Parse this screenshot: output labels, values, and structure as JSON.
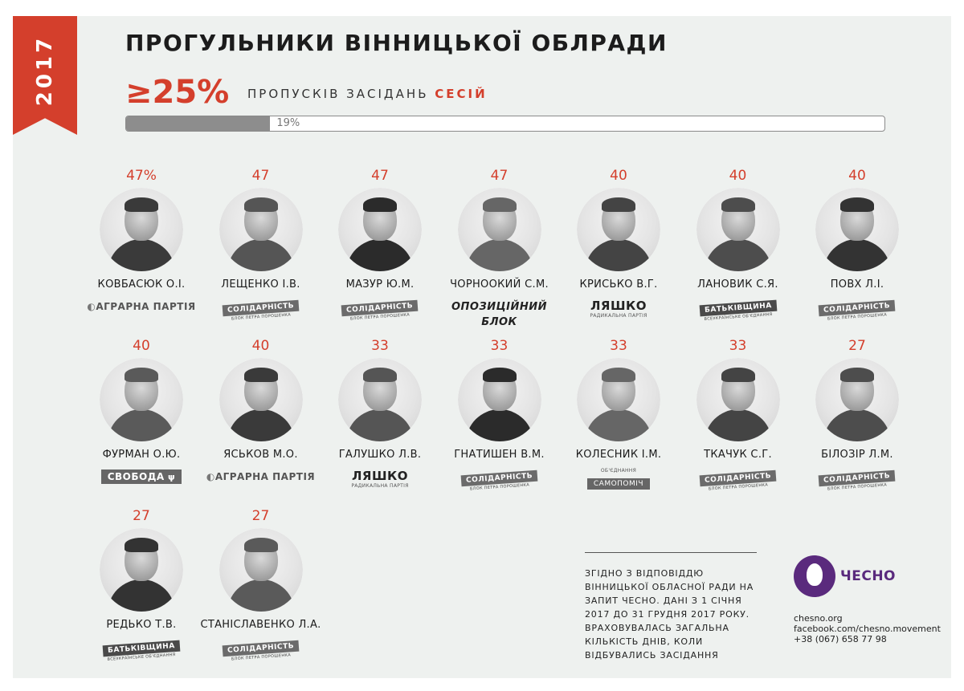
{
  "year": "2017",
  "header": {
    "title": "ПРОГУЛЬНИКИ ВІННИЦЬКОЇ ОБЛРАДИ",
    "threshold": "≥25%",
    "threshold_label": "ПРОПУСКІВ ЗАСІДАНЬ",
    "threshold_accent": "СЕСІЙ"
  },
  "overall_bar": {
    "value": 19,
    "label": "19%",
    "fill_color": "#8d8d8d"
  },
  "accent_color": "#d43f2c",
  "chart_data": {
    "type": "table",
    "columns": [
      "percent_absent",
      "name",
      "party"
    ],
    "rows": [
      {
        "value": 47,
        "label": "47%",
        "name": "КОВБАСЮК О.І.",
        "party": "agrarna"
      },
      {
        "value": 47,
        "label": "47",
        "name": "ЛЕЩЕНКО І.В.",
        "party": "solidarnist"
      },
      {
        "value": 47,
        "label": "47",
        "name": "МАЗУР Ю.М.",
        "party": "solidarnist"
      },
      {
        "value": 47,
        "label": "47",
        "name": "ЧОРНООКИЙ С.М.",
        "party": "opozytsiinyi"
      },
      {
        "value": 40,
        "label": "40",
        "name": "КРИСЬКО В.Г.",
        "party": "liashko"
      },
      {
        "value": 40,
        "label": "40",
        "name": "ЛАНОВИК С.Я.",
        "party": "batkivshchyna"
      },
      {
        "value": 40,
        "label": "40",
        "name": "ПОВХ Л.І.",
        "party": "solidarnist"
      },
      {
        "value": 40,
        "label": "40",
        "name": "ФУРМАН О.Ю.",
        "party": "svoboda"
      },
      {
        "value": 40,
        "label": "40",
        "name": "ЯСЬКОВ М.О.",
        "party": "agrarna"
      },
      {
        "value": 33,
        "label": "33",
        "name": "ГАЛУШКО Л.В.",
        "party": "liashko"
      },
      {
        "value": 33,
        "label": "33",
        "name": "ГНАТИШЕН В.М.",
        "party": "solidarnist"
      },
      {
        "value": 33,
        "label": "33",
        "name": "КОЛЕСНИК І.М.",
        "party": "samopomich"
      },
      {
        "value": 33,
        "label": "33",
        "name": "ТКАЧУК С.Г.",
        "party": "solidarnist"
      },
      {
        "value": 27,
        "label": "27",
        "name": "БІЛОЗІР Л.М.",
        "party": "solidarnist"
      },
      {
        "value": 27,
        "label": "27",
        "name": "РЕДЬКО Т.В.",
        "party": "batkivshchyna"
      },
      {
        "value": 27,
        "label": "27",
        "name": "СТАНІСЛАВЕНКО Л.А.",
        "party": "solidarnist"
      }
    ]
  },
  "parties": {
    "agrarna": {
      "text": "АГРАРНА ПАРТІЯ",
      "icon": "agrarian-leaf-icon"
    },
    "solidarnist": {
      "text": "СОЛІДАРНІСТЬ",
      "sub": "БЛОК ПЕТРА ПОРОШЕНКА"
    },
    "opozytsiinyi": {
      "text": "ОПОЗИЦІЙНИЙ",
      "text2": "БЛОК"
    },
    "liashko": {
      "text": "ЛЯШКО",
      "sub": "РАДИКАЛЬНА ПАРТІЯ"
    },
    "batkivshchyna": {
      "text": "БАТЬКІВЩИНА",
      "sub": "ВСЕУКРАЇНСЬКЕ ОБ'ЄДНАННЯ"
    },
    "svoboda": {
      "text": "СВОБОДА",
      "icon": "trident-icon"
    },
    "samopomich": {
      "text": "САМОПОМІЧ",
      "sub": "ОБ'ЄДНАННЯ"
    }
  },
  "footer": {
    "note": "ЗГІДНО З ВІДПОВІДДЮ ВІННИЦЬКОЇ ОБЛАСНОЇ РАДИ НА ЗАПИТ ЧЕСНО. ДАНІ З 1 СІЧНЯ 2017 ДО 31 ГРУДНЯ 2017 РОКУ. ВРАХОВУВАЛАСЬ ЗАГАЛЬНА КІЛЬКІСТЬ ДНІВ, КОЛИ ВІДБУВАЛИСЬ ЗАСІДАННЯ",
    "brand": "ЧЕСНО",
    "brand_color": "#5a2a7d",
    "site": "chesno.org",
    "facebook": "facebook.com/chesno.movement",
    "phone": "+38 (067) 658 77 98"
  }
}
